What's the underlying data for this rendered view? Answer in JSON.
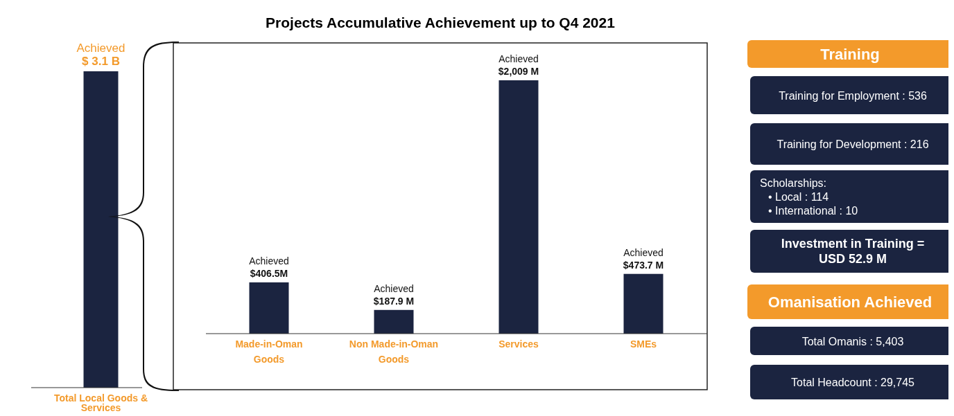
{
  "chart_data": [
    {
      "type": "bar",
      "categories": [
        "Total Local Goods & Services"
      ],
      "values": [
        3.1
      ],
      "color": "#1b2440",
      "value_labels": [
        "Achieved $ 3.1 B"
      ]
    },
    {
      "type": "bar",
      "title": "Projects Accumulative Achievement up to Q4 2021",
      "categories": [
        "Made-in-Oman Goods",
        "Non Made-in-Oman Goods",
        "Services",
        "SMEs"
      ],
      "values": [
        406.5,
        187.9,
        2009,
        473.7
      ],
      "color": "#1b2440",
      "value_labels": [
        "Achieved $406.5M",
        "Achieved $187.9 M",
        "Achieved $2,009 M",
        "Achieved $473.7 M"
      ]
    },
    {
      "type": "other",
      "title": "Training",
      "annotations": [
        "Training for Employment : 536",
        "Training for Development : 216",
        "Scholarships:\n• Local : 114\n• International : 10",
        "Investment in Training =\nUSD 52.9 M"
      ]
    },
    {
      "type": "other",
      "title": "Omanisation Achieved",
      "annotations": [
        "Total Omanis : 5,403",
        "Total Headcount : 29,745"
      ]
    }
  ]
}
